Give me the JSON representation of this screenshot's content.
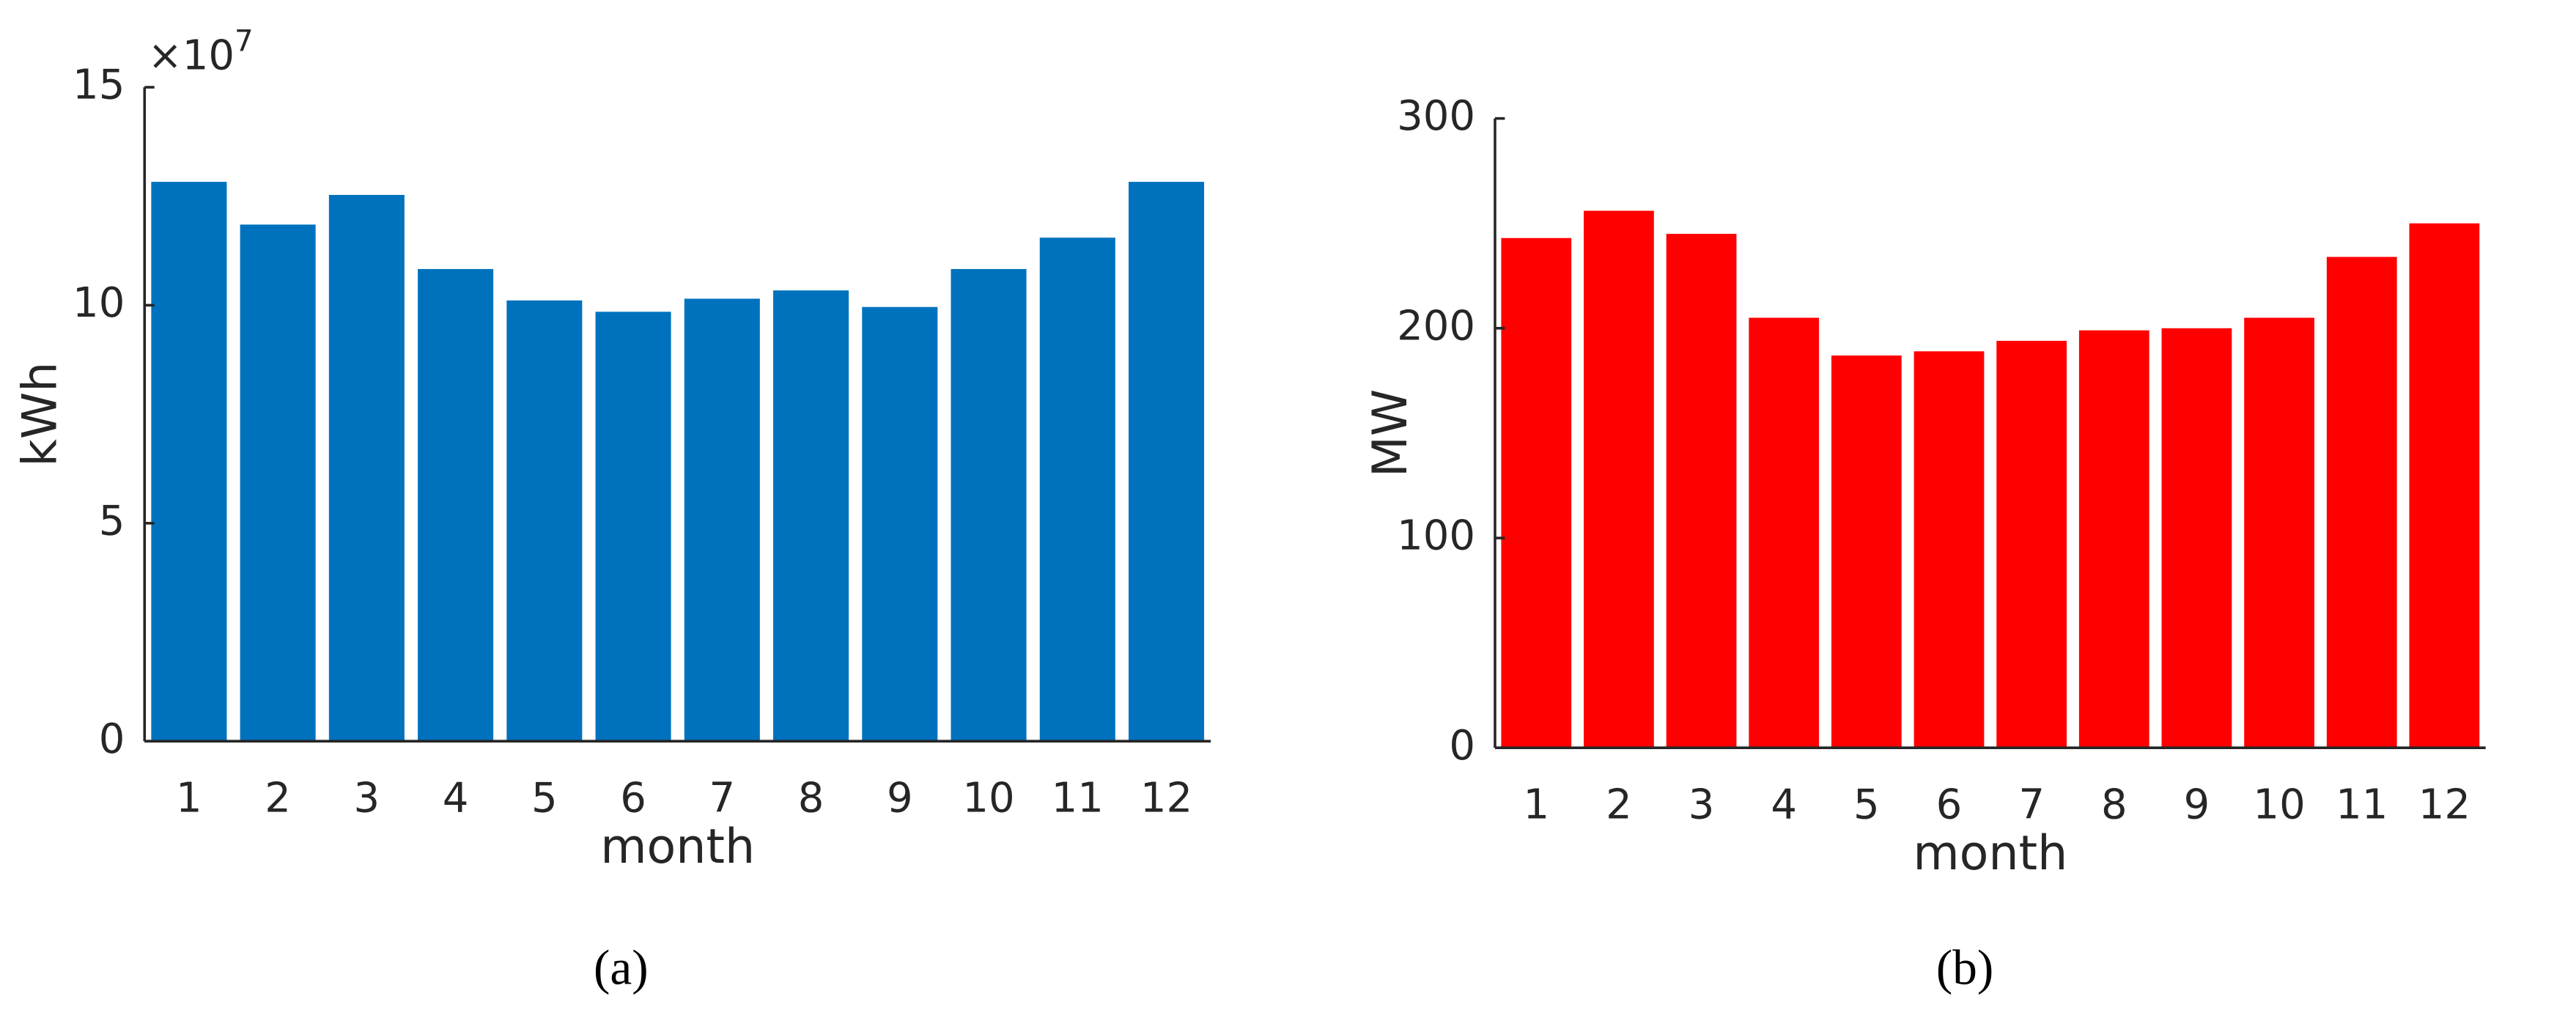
{
  "chart_data": [
    {
      "type": "bar",
      "panel_label": "(a)",
      "xlabel": "month",
      "ylabel": "kWh",
      "y_multiplier": "×10",
      "y_exponent": "7",
      "categories": [
        "1",
        "2",
        "3",
        "4",
        "5",
        "6",
        "7",
        "8",
        "9",
        "10",
        "11",
        "12"
      ],
      "values": [
        12.83,
        11.85,
        12.53,
        10.83,
        10.11,
        9.85,
        10.15,
        10.34,
        9.96,
        10.83,
        11.55,
        12.83
      ],
      "color": "#0072bd",
      "ylim": [
        0,
        15
      ],
      "yticks": [
        0,
        5,
        10,
        15
      ],
      "grid": false
    },
    {
      "type": "bar",
      "panel_label": "(b)",
      "xlabel": "month",
      "ylabel": "MW",
      "categories": [
        "1",
        "2",
        "3",
        "4",
        "5",
        "6",
        "7",
        "8",
        "9",
        "10",
        "11",
        "12"
      ],
      "values": [
        243,
        256,
        245,
        205,
        187,
        189,
        194,
        199,
        200,
        205,
        234,
        250
      ],
      "color": "#ff0000",
      "ylim": [
        0,
        300
      ],
      "yticks": [
        0,
        100,
        200,
        300
      ],
      "grid": false
    }
  ]
}
